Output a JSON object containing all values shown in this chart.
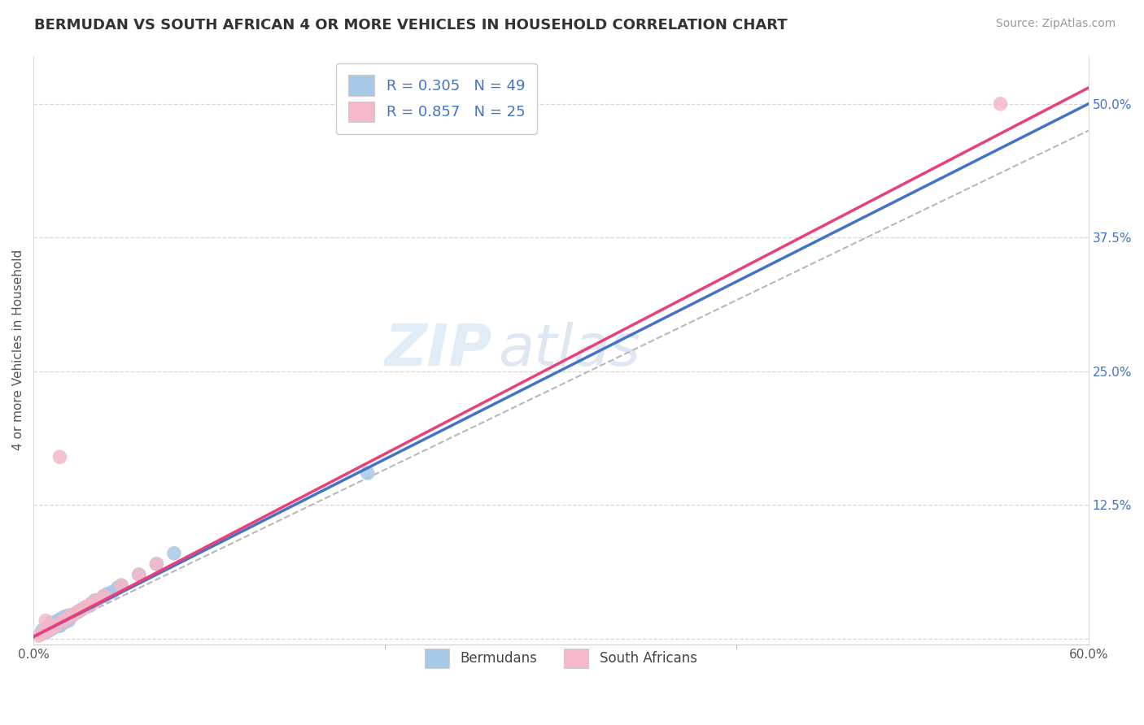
{
  "title": "BERMUDAN VS SOUTH AFRICAN 4 OR MORE VEHICLES IN HOUSEHOLD CORRELATION CHART",
  "source_text": "Source: ZipAtlas.com",
  "ylabel": "4 or more Vehicles in Household",
  "xmin": 0.0,
  "xmax": 0.6,
  "ymin": -0.005,
  "ymax": 0.545,
  "ytick_vals": [
    0.0,
    0.125,
    0.25,
    0.375,
    0.5
  ],
  "ytick_labels": [
    "",
    "12.5%",
    "25.0%",
    "37.5%",
    "50.0%"
  ],
  "legend_items": [
    {
      "label": "R = 0.305   N = 49",
      "color": "#a8c8e8"
    },
    {
      "label": "R = 0.857   N = 25",
      "color": "#f4b8c8"
    }
  ],
  "bottom_legend": [
    {
      "label": "Bermudans",
      "color": "#a8c8e8"
    },
    {
      "label": "South Africans",
      "color": "#f4b8c8"
    }
  ],
  "bermuda_scatter_x": [
    0.005,
    0.005,
    0.007,
    0.008,
    0.008,
    0.009,
    0.009,
    0.01,
    0.01,
    0.01,
    0.011,
    0.011,
    0.012,
    0.012,
    0.013,
    0.013,
    0.014,
    0.014,
    0.015,
    0.015,
    0.015,
    0.016,
    0.016,
    0.017,
    0.017,
    0.018,
    0.018,
    0.019,
    0.02,
    0.02,
    0.021,
    0.022,
    0.023,
    0.025,
    0.026,
    0.028,
    0.03,
    0.032,
    0.033,
    0.035,
    0.04,
    0.042,
    0.045,
    0.048,
    0.05,
    0.06,
    0.07,
    0.08,
    0.19
  ],
  "bermuda_scatter_y": [
    0.005,
    0.008,
    0.006,
    0.007,
    0.01,
    0.008,
    0.012,
    0.009,
    0.011,
    0.015,
    0.01,
    0.013,
    0.011,
    0.014,
    0.012,
    0.016,
    0.013,
    0.017,
    0.012,
    0.015,
    0.018,
    0.014,
    0.019,
    0.015,
    0.02,
    0.016,
    0.021,
    0.018,
    0.017,
    0.022,
    0.02,
    0.022,
    0.023,
    0.025,
    0.026,
    0.028,
    0.03,
    0.031,
    0.033,
    0.036,
    0.04,
    0.042,
    0.044,
    0.048,
    0.05,
    0.06,
    0.07,
    0.08,
    0.155
  ],
  "sa_scatter_x": [
    0.003,
    0.005,
    0.006,
    0.007,
    0.008,
    0.009,
    0.01,
    0.011,
    0.012,
    0.013,
    0.015,
    0.017,
    0.019,
    0.021,
    0.023,
    0.025,
    0.028,
    0.03,
    0.033,
    0.036,
    0.04,
    0.05,
    0.06,
    0.07,
    0.55
  ],
  "sa_scatter_y": [
    0.003,
    0.005,
    0.006,
    0.017,
    0.008,
    0.009,
    0.01,
    0.011,
    0.012,
    0.013,
    0.17,
    0.017,
    0.019,
    0.021,
    0.023,
    0.025,
    0.028,
    0.03,
    0.033,
    0.036,
    0.04,
    0.05,
    0.06,
    0.07,
    0.5
  ],
  "bermuda_line_x0": 0.0,
  "bermuda_line_y0": 0.002,
  "bermuda_line_x1": 0.6,
  "bermuda_line_y1": 0.5,
  "sa_line_x0": 0.0,
  "sa_line_y0": 0.002,
  "sa_line_x1": 0.6,
  "sa_line_y1": 0.515,
  "ref_line_x0": 0.0,
  "ref_line_y0": 0.0,
  "ref_line_x1": 0.6,
  "ref_line_y1": 0.475,
  "bermuda_line_color": "#4472c4",
  "sa_line_color": "#e8407a",
  "scatter_bermuda_color": "#a8c8e8",
  "scatter_sa_color": "#f4b8c8",
  "ref_line_color": "#b8b8b8",
  "grid_color": "#d8d8d8",
  "watermark_zip": "ZIP",
  "watermark_atlas": "atlas",
  "background_color": "#ffffff",
  "title_fontsize": 13,
  "axis_label_fontsize": 11,
  "tick_fontsize": 11,
  "source_fontsize": 10,
  "legend_fontsize": 13
}
